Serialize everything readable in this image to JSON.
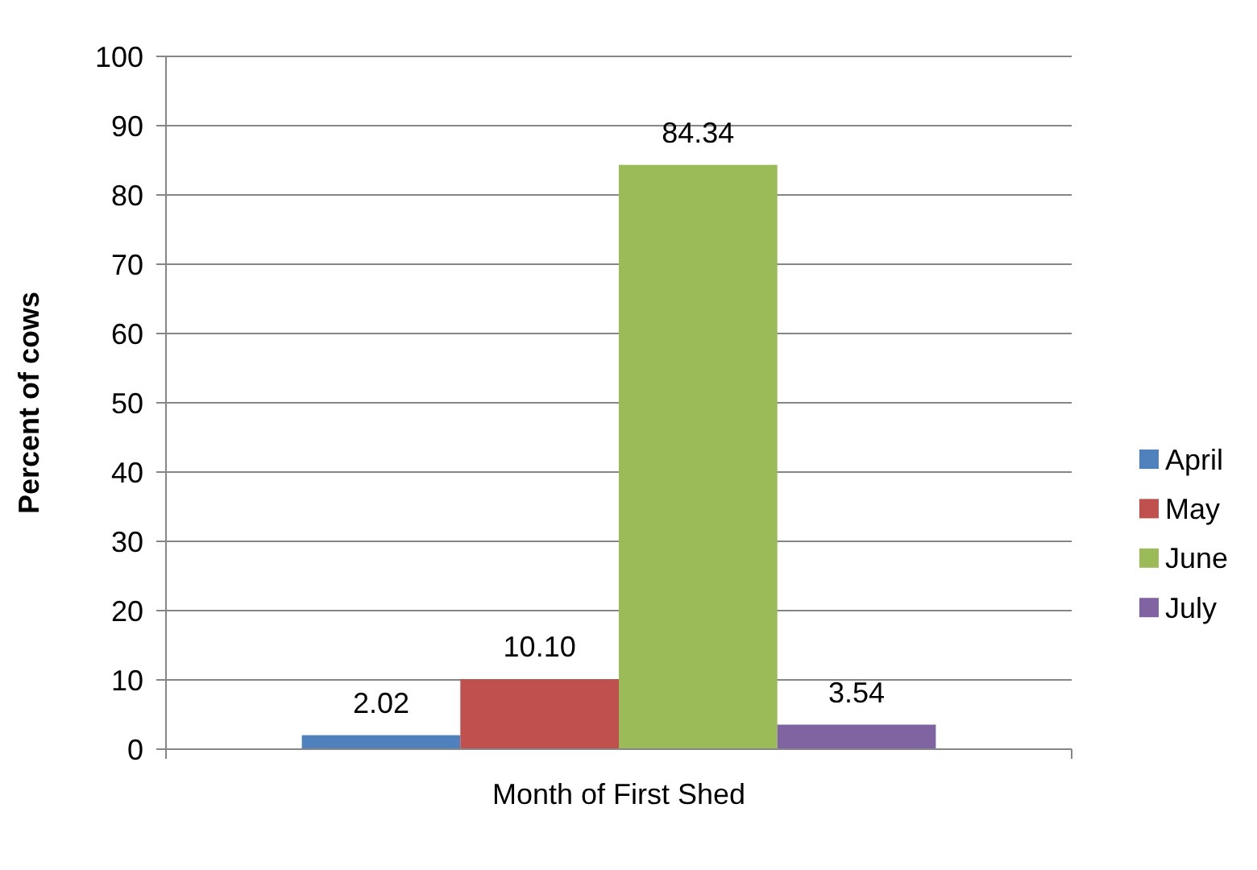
{
  "chart_data": {
    "type": "bar",
    "ylabel": "Percent of cows",
    "categories": [
      "Month of First Shed"
    ],
    "series": [
      {
        "name": "April",
        "color": "#4f81bd",
        "values": [
          2.02
        ],
        "value_labels": [
          "2.02"
        ]
      },
      {
        "name": "May",
        "color": "#c0504d",
        "values": [
          10.1
        ],
        "value_labels": [
          "10.10"
        ]
      },
      {
        "name": "June",
        "color": "#9bbb59",
        "values": [
          84.34
        ],
        "value_labels": [
          "84.34"
        ]
      },
      {
        "name": "July",
        "color": "#8064a2",
        "values": [
          3.54
        ],
        "value_labels": [
          "3.54"
        ]
      }
    ],
    "ylim": [
      0,
      100
    ],
    "yticks": [
      0,
      10,
      20,
      30,
      40,
      50,
      60,
      70,
      80,
      90,
      100
    ],
    "grid": "y",
    "legend": "right"
  }
}
